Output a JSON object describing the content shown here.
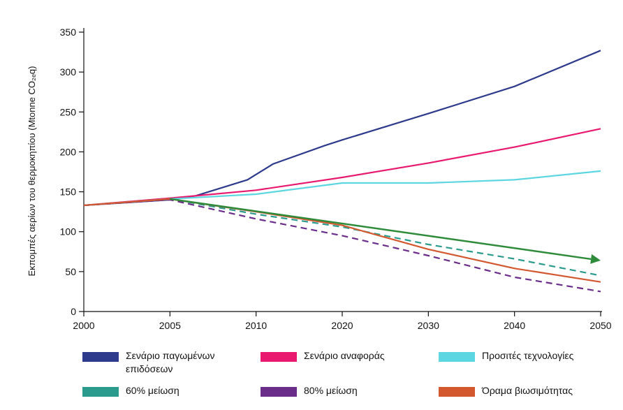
{
  "chart_data": {
    "type": "line",
    "ylabel": "Εκπομπές αερίων του θερμοκηπίου (Mtonne CO₂ₑq)",
    "x_tick_labels": [
      "2000",
      "2005",
      "2010",
      "2020",
      "2030",
      "2040",
      "2050"
    ],
    "y_ticks": [
      0,
      50,
      100,
      150,
      200,
      250,
      300,
      350
    ],
    "ylim": [
      0,
      350
    ],
    "grid": false,
    "legend_position": "bottom",
    "series": [
      {
        "name": "Σενάριο παγωμένων επιδόσεων",
        "color": "#2e3a8c",
        "dash": false,
        "points": [
          [
            0,
            133
          ],
          [
            1,
            140
          ],
          [
            1.3,
            145
          ],
          [
            1.9,
            165
          ],
          [
            2.2,
            185
          ],
          [
            2.8,
            208
          ],
          [
            3,
            215
          ],
          [
            4,
            248
          ],
          [
            5,
            282
          ],
          [
            6,
            327
          ]
        ]
      },
      {
        "name": "Σενάριο αναφοράς",
        "color": "#e8196e",
        "dash": false,
        "points": [
          [
            0,
            133
          ],
          [
            1,
            142
          ],
          [
            2,
            152
          ],
          [
            3,
            168
          ],
          [
            4,
            186
          ],
          [
            5,
            206
          ],
          [
            6,
            229
          ]
        ]
      },
      {
        "name": "Προσιτές τεχνολογίες",
        "color": "#5cd6e0",
        "dash": false,
        "points": [
          [
            0,
            133
          ],
          [
            1,
            141
          ],
          [
            2,
            147
          ],
          [
            3,
            161
          ],
          [
            4,
            161
          ],
          [
            5,
            165
          ],
          [
            6,
            176
          ]
        ]
      },
      {
        "name": "60% μείωση",
        "color": "#2a9b8c",
        "dash": true,
        "points": [
          [
            0,
            133
          ],
          [
            1,
            141
          ],
          [
            2,
            122
          ],
          [
            3,
            106
          ],
          [
            4,
            84
          ],
          [
            5,
            66
          ],
          [
            6,
            45
          ]
        ]
      },
      {
        "name": "80% μείωση",
        "color": "#6a2d8a",
        "dash": true,
        "points": [
          [
            0,
            133
          ],
          [
            1,
            140
          ],
          [
            2,
            116
          ],
          [
            3,
            95
          ],
          [
            4,
            70
          ],
          [
            5,
            43
          ],
          [
            6,
            25
          ]
        ]
      },
      {
        "name": "Όραμα βιωσιμότητας",
        "color": "#d4582f",
        "dash": false,
        "points": [
          [
            0,
            133
          ],
          [
            1,
            141
          ],
          [
            2,
            125
          ],
          [
            3,
            108
          ],
          [
            4,
            78
          ],
          [
            5,
            54
          ],
          [
            6,
            37
          ]
        ]
      }
    ],
    "annotation": {
      "type": "arrow",
      "color": "#2e8b3a",
      "from": [
        1,
        141
      ],
      "to": [
        6,
        64
      ]
    }
  }
}
